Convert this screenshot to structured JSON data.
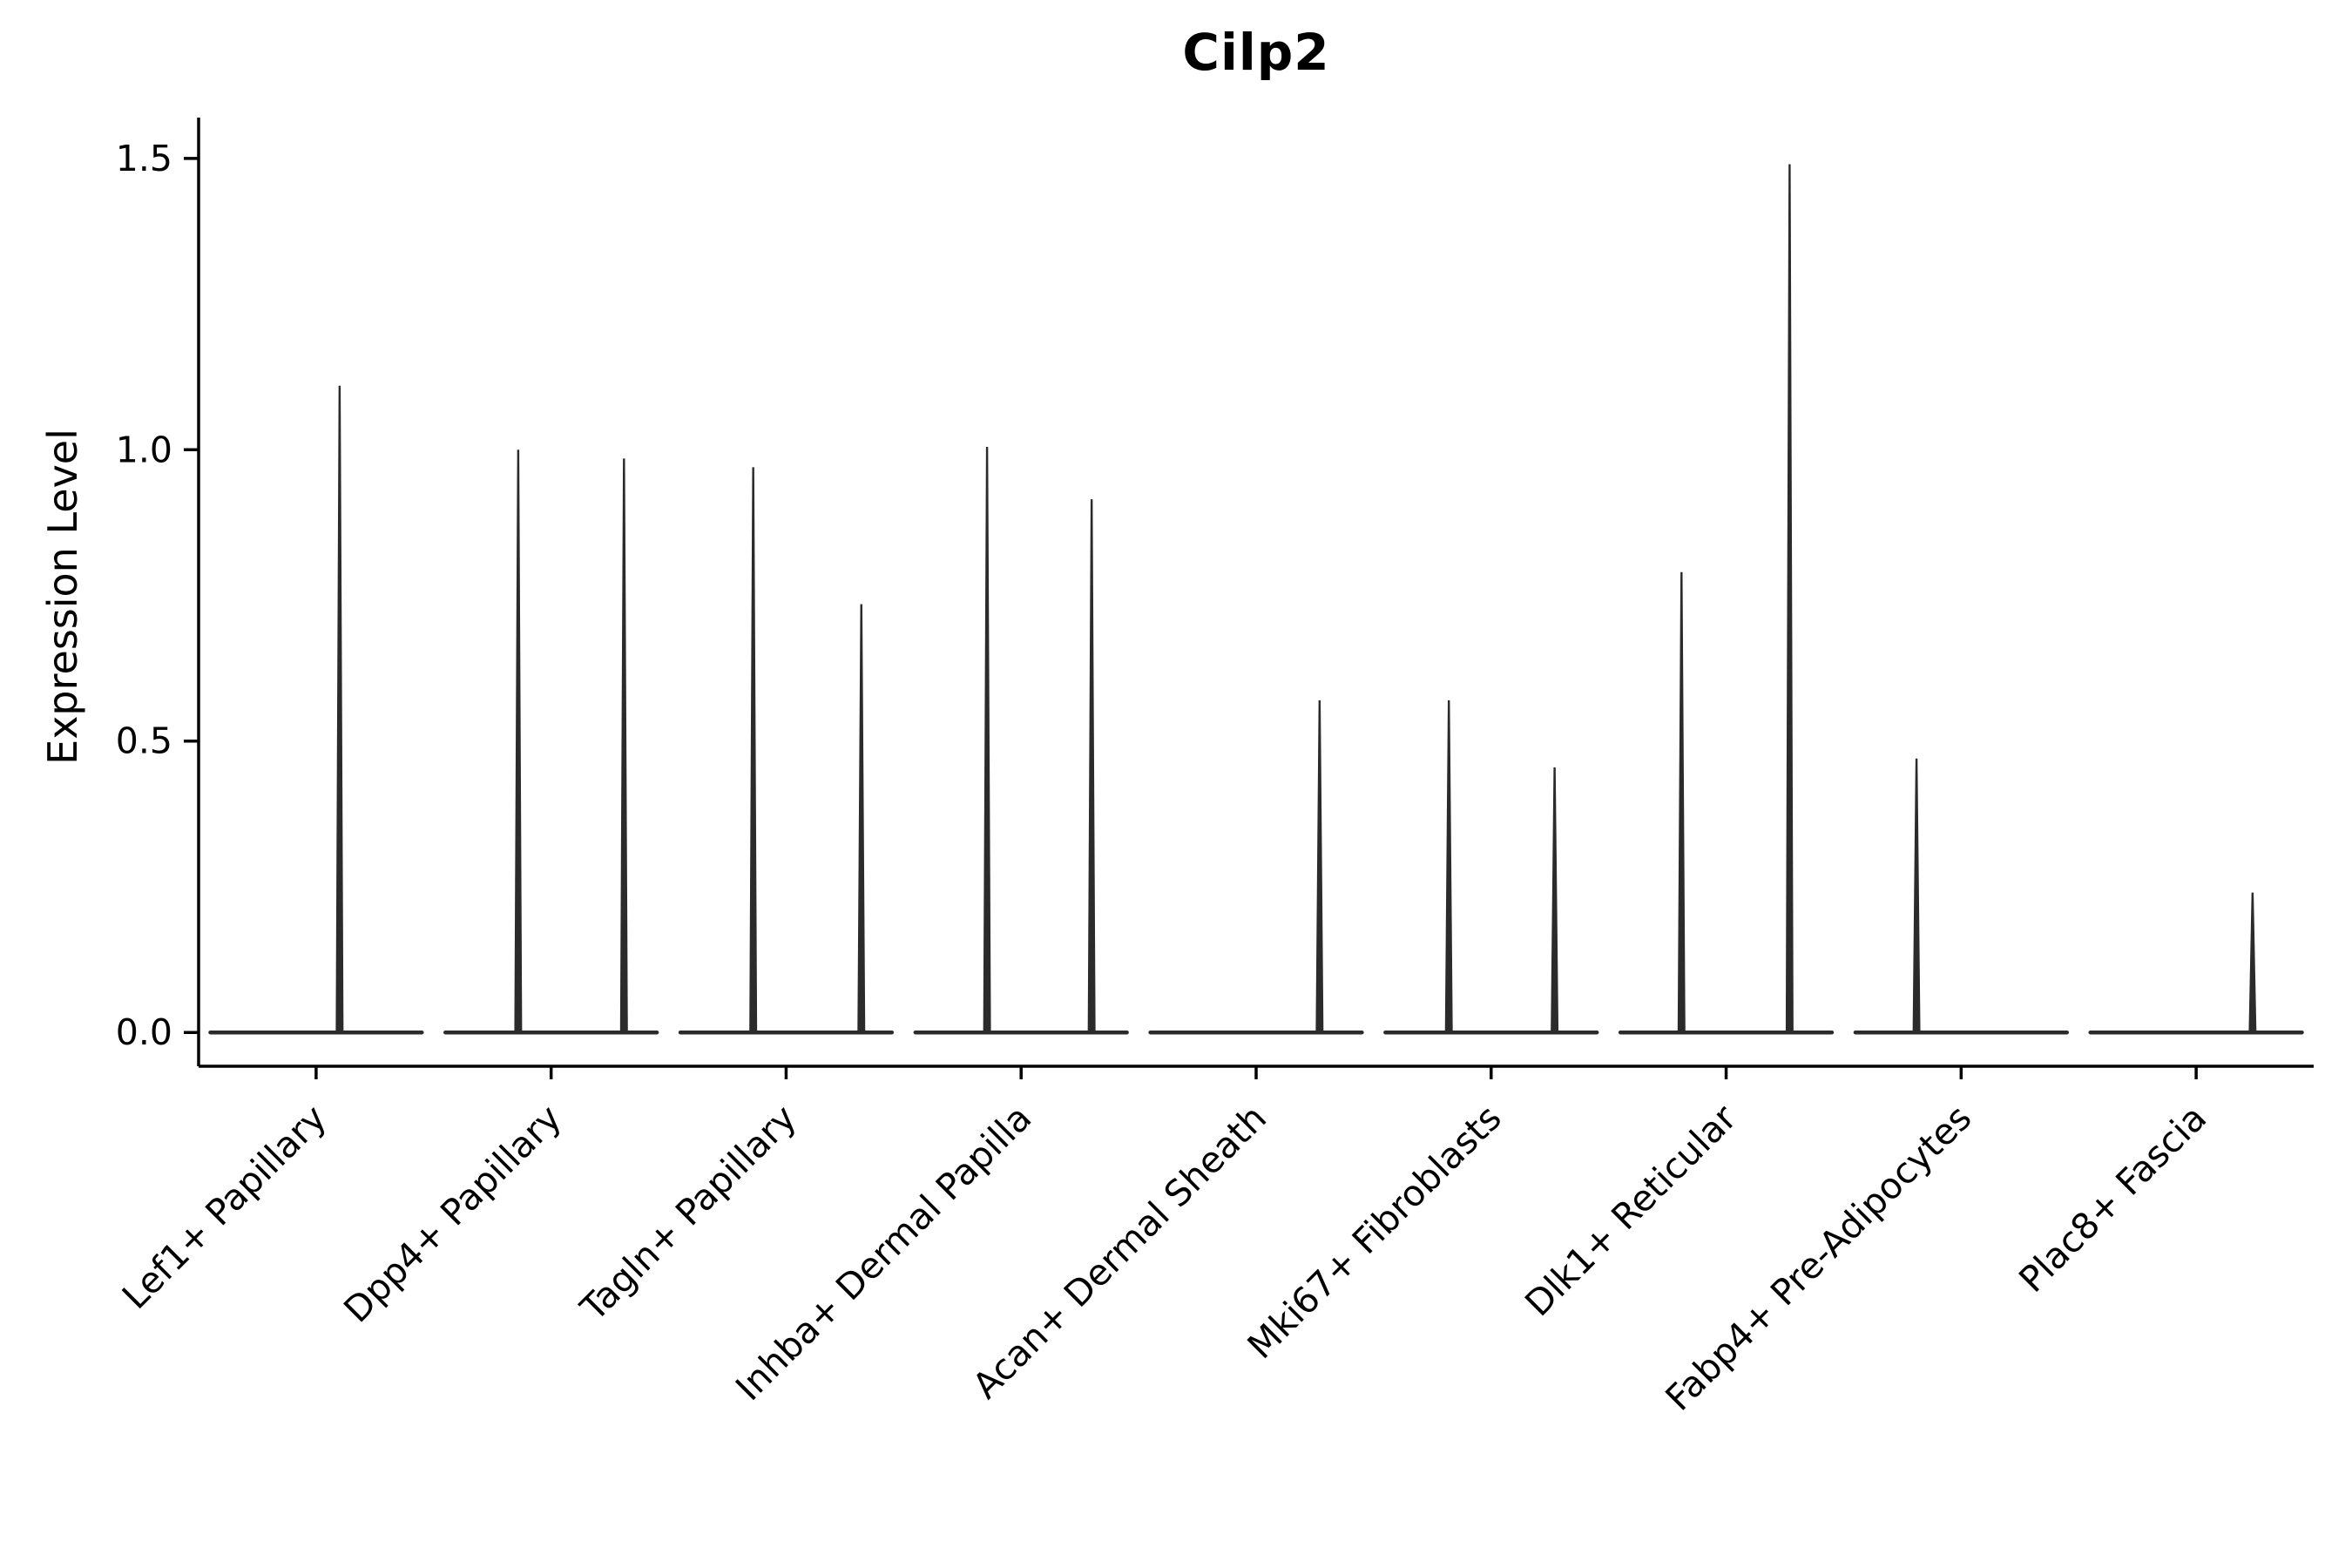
{
  "chart_data": {
    "type": "violin",
    "title": "Cilp2",
    "xlabel": "",
    "ylabel": "Expression Level",
    "yticks": [
      "0.0",
      "0.5",
      "1.0",
      "1.5"
    ],
    "ytick_values": [
      0.0,
      0.5,
      1.0,
      1.5
    ],
    "ylim": [
      -0.058,
      1.57
    ],
    "grid": false,
    "legend": "none",
    "categories": [
      "Lef1+ Papillary",
      "Dpp4+ Papillary",
      "Tagln+ Papillary",
      "Inhba+ Dermal Papilla",
      "Acan+ Dermal Sheath",
      "Mki67+ Fibroblasts",
      "Dlk1+ Reticular",
      "Fabp4+ Pre-Adipocytes",
      "Plac8+ Fascia"
    ],
    "violins": [
      {
        "category": "Lef1+ Papillary",
        "baseline": 0.0,
        "spikes": [
          {
            "value": 1.11,
            "offset": 0.1
          }
        ]
      },
      {
        "category": "Dpp4+ Papillary",
        "baseline": 0.0,
        "spikes": [
          {
            "value": 1.0,
            "offset": -0.14
          },
          {
            "value": 0.985,
            "offset": 0.31
          }
        ]
      },
      {
        "category": "Tagln+ Papillary",
        "baseline": 0.0,
        "spikes": [
          {
            "value": 0.97,
            "offset": -0.14
          },
          {
            "value": 0.735,
            "offset": 0.32
          }
        ]
      },
      {
        "category": "Inhba+ Dermal Papilla",
        "baseline": 0.0,
        "spikes": [
          {
            "value": 1.005,
            "offset": -0.145
          },
          {
            "value": 0.915,
            "offset": 0.3
          }
        ]
      },
      {
        "category": "Acan+ Dermal Sheath",
        "baseline": 0.0,
        "spikes": [
          {
            "value": 0.57,
            "offset": 0.27
          }
        ]
      },
      {
        "category": "Mki67+ Fibroblasts",
        "baseline": 0.0,
        "spikes": [
          {
            "value": 0.57,
            "offset": -0.18
          },
          {
            "value": 0.455,
            "offset": 0.27
          }
        ]
      },
      {
        "category": "Dlk1+ Reticular",
        "baseline": 0.0,
        "spikes": [
          {
            "value": 0.79,
            "offset": -0.19
          },
          {
            "value": 1.49,
            "offset": 0.27
          }
        ]
      },
      {
        "category": "Fabp4+ Pre-Adipocytes",
        "baseline": 0.0,
        "spikes": [
          {
            "value": 0.47,
            "offset": -0.19
          }
        ]
      },
      {
        "category": "Plac8+ Fascia",
        "baseline": 0.0,
        "spikes": [
          {
            "value": 0.24,
            "offset": 0.24
          }
        ]
      }
    ],
    "colors": {
      "violin": "#2b2b2b",
      "axis": "#000000",
      "text": "#000000"
    }
  }
}
